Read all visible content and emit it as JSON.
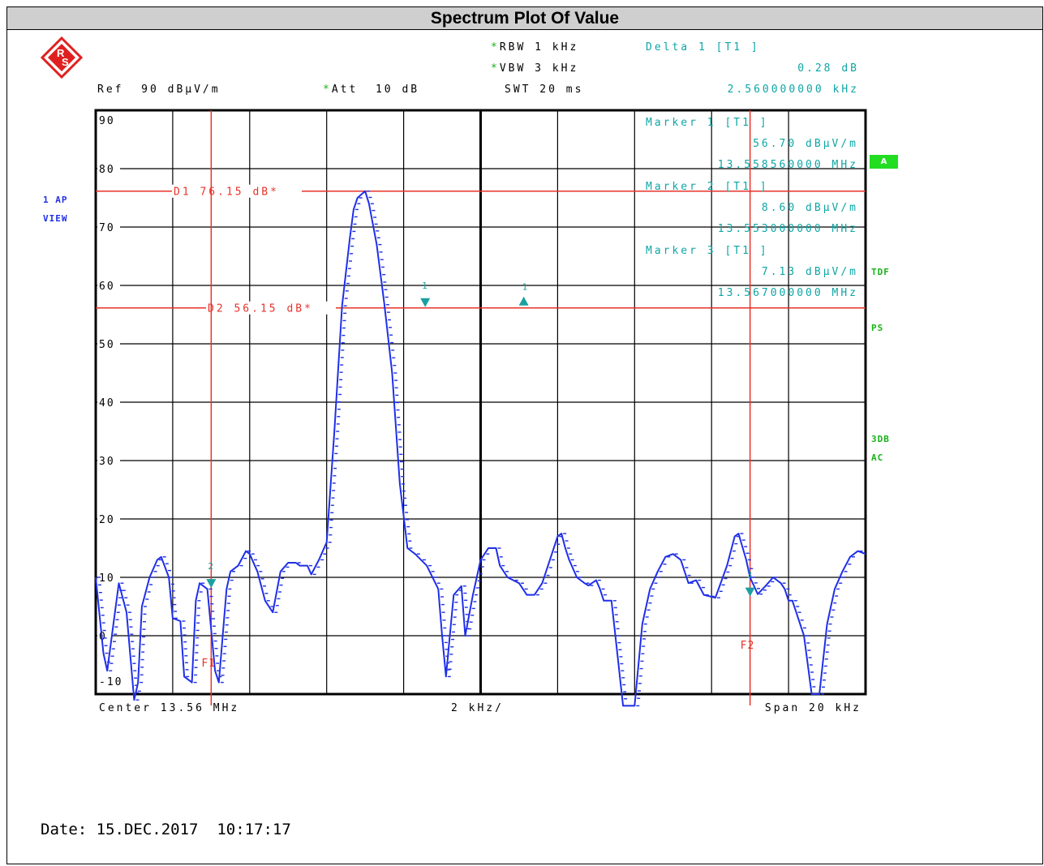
{
  "title": "Spectrum Plot Of Value",
  "header": {
    "rbw": "RBW 1 kHz",
    "vbw": "VBW 3 kHz",
    "swt": "SWT 20 ms",
    "ref": "Ref  90 dBµV/m",
    "att": "Att  10 dB",
    "delta_label": "Delta 1 [T1 ]",
    "delta_value": "0.28 dB",
    "delta_freq": "2.560000000 kHz"
  },
  "left_labels": {
    "trace_mode": "1 AP",
    "view": "VIEW"
  },
  "right_labels": {
    "a": "A",
    "tdf": "TDF",
    "ps": "PS",
    "three_db": "3DB",
    "ac": "AC"
  },
  "markers": [
    {
      "label": "Marker 1 [T1 ]",
      "level": "56.70 dBµV/m",
      "freq": "13.558560000 MHz"
    },
    {
      "label": "Marker 2 [T1 ]",
      "level": "8.60 dBµV/m",
      "freq": "13.553000000 MHz"
    },
    {
      "label": "Marker 3 [T1 ]",
      "level": "7.13 dBµV/m",
      "freq": "13.567000000 MHz"
    }
  ],
  "display_lines": {
    "d1": "D1 76.15 dB*",
    "d2": "D2 56.15 dB*",
    "f1": "F1",
    "f2": "F2"
  },
  "footer": {
    "center": "Center 13.56 MHz",
    "div": "2 kHz/",
    "span": "Span 20 kHz"
  },
  "date": "Date: 15.DEC.2017  10:17:17",
  "colors": {
    "trace": "#1f2fe8",
    "lines": "#e8322a",
    "marker_text": "#0fa5a5",
    "softkey": "#16b316"
  },
  "chart_data": {
    "type": "line",
    "xlabel": "",
    "ylabel": "",
    "xlim": [
      13.55,
      13.57
    ],
    "ylim": [
      -10,
      90
    ],
    "ytick_labels": [
      "90",
      "80",
      "70",
      "60",
      "50",
      "40",
      "30",
      "20",
      "10",
      "0",
      "-10"
    ],
    "ytick_values": [
      90,
      80,
      70,
      60,
      50,
      40,
      30,
      20,
      10,
      0,
      -10
    ],
    "grid": true,
    "hlines": [
      {
        "name": "D1",
        "value": 76.15
      },
      {
        "name": "D2",
        "value": 56.15
      }
    ],
    "vlines": [
      {
        "name": "F1",
        "value": 13.553
      },
      {
        "name": "F2",
        "value": 13.567
      }
    ],
    "marker_points": [
      {
        "id": "1",
        "x": 13.55856,
        "y": 56.7
      },
      {
        "id": "2",
        "x": 13.553,
        "y": 8.6
      },
      {
        "id": "3",
        "x": 13.567,
        "y": 7.13
      },
      {
        "id": "D1",
        "x": 13.56112,
        "y": 56.98
      }
    ],
    "series": [
      {
        "x": [
          13.55,
          13.5502,
          13.5503,
          13.5505,
          13.5506,
          13.5508,
          13.551,
          13.5511,
          13.5512,
          13.5514,
          13.5516,
          13.5517,
          13.5519,
          13.552,
          13.5522,
          13.5523,
          13.5525,
          13.5526,
          13.5527,
          13.5529,
          13.5531,
          13.5532,
          13.5534,
          13.5535,
          13.5537,
          13.5539,
          13.554,
          13.5542,
          13.5544,
          13.5546,
          13.5548,
          13.555,
          13.5552,
          13.5553,
          13.5555,
          13.5556,
          13.5558,
          13.556,
          13.5562,
          13.5564,
          13.5566,
          13.5567,
          13.5568,
          13.557,
          13.5571,
          13.5573,
          13.5575,
          13.5577,
          13.5579,
          13.5581,
          13.5583,
          13.5586,
          13.5589,
          13.559,
          13.5591,
          13.5593,
          13.5595,
          13.5596,
          13.5598,
          13.56,
          13.5602,
          13.5604,
          13.5605,
          13.5607,
          13.561,
          13.5612,
          13.5614,
          13.5616,
          13.5618,
          13.562,
          13.5621,
          13.5622,
          13.5623,
          13.5625,
          13.5627,
          13.5628,
          13.563,
          13.5631,
          13.5632,
          13.5634,
          13.5635,
          13.5637,
          13.5638,
          13.564,
          13.5642,
          13.5644,
          13.5646,
          13.5648,
          13.565,
          13.5652,
          13.5654,
          13.5656,
          13.5658,
          13.5661,
          13.5664,
          13.5666,
          13.5667,
          13.5669,
          13.567,
          13.5672,
          13.5674,
          13.5676,
          13.5678,
          13.5679,
          13.568,
          13.5681,
          13.5682,
          13.5684,
          13.5686,
          13.5688,
          13.569,
          13.5692,
          13.5694,
          13.5696,
          13.5698,
          13.57
        ],
        "y": [
          10,
          -3,
          -6,
          4,
          9,
          4,
          -11,
          -8,
          5,
          10,
          13,
          13.5,
          10,
          3,
          2.5,
          -7,
          -8,
          6,
          9,
          8,
          -6,
          -8,
          8,
          11,
          12,
          14.5,
          14,
          11,
          6,
          4,
          11,
          12.5,
          12.5,
          12,
          12,
          10.5,
          13,
          16,
          35,
          56.5,
          68,
          73,
          75,
          76.15,
          74,
          67,
          56.7,
          45,
          26,
          15,
          14,
          12,
          8,
          0,
          -7,
          7,
          8.5,
          0,
          7,
          13,
          15,
          15,
          12,
          10,
          9,
          7,
          7,
          9,
          13,
          17,
          17.5,
          15,
          13,
          10,
          9,
          8.6,
          9.5,
          8,
          6,
          6,
          0,
          -12,
          -12,
          -12,
          2,
          8,
          11,
          13.5,
          14,
          13,
          9,
          9.5,
          7,
          6.5,
          12,
          17,
          17.5,
          13,
          10,
          7.13,
          8.5,
          10,
          9,
          8,
          6,
          6,
          4,
          0,
          -10,
          -10,
          2,
          8,
          11,
          13.5,
          14.5,
          14
        ]
      }
    ]
  }
}
